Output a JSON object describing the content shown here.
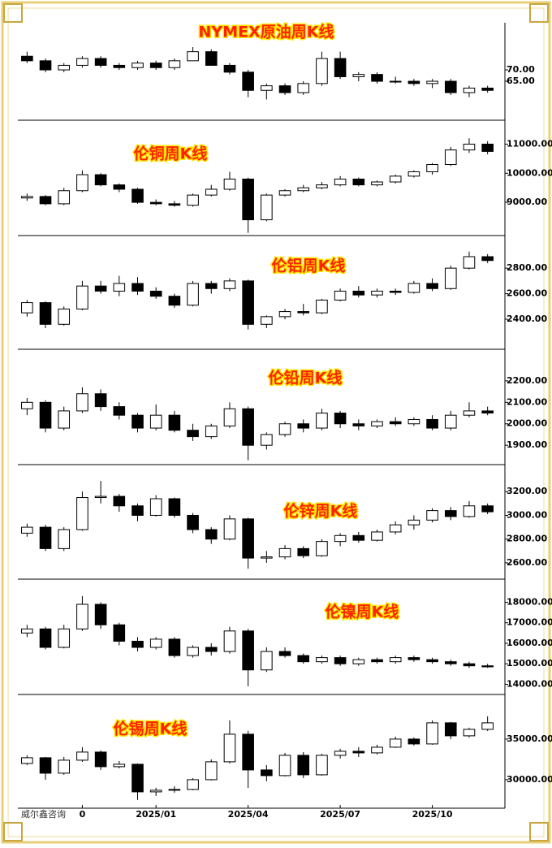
{
  "watermark": "威尔鑫咨询",
  "chart_data": [
    {
      "type": "candlestick",
      "title": "NYMEX原油周K线",
      "up_color": "#ffffff",
      "down_color": "#000000",
      "open": [
        76,
        74,
        70,
        72,
        75,
        72,
        71,
        73,
        71,
        74,
        78,
        72,
        69,
        61,
        63,
        60,
        64,
        75,
        67,
        68,
        65,
        65,
        64,
        65,
        60,
        62
      ],
      "high": [
        78,
        75,
        73,
        76,
        76,
        73,
        74,
        74,
        75,
        80,
        79,
        73,
        70,
        64,
        64,
        65,
        78,
        78,
        69,
        69,
        67,
        66,
        66,
        66,
        63,
        63
      ],
      "low": [
        73,
        69,
        69,
        71,
        71,
        70,
        70,
        70,
        70,
        74,
        72,
        68,
        58,
        57,
        59,
        59,
        63,
        66,
        65,
        64,
        64,
        63,
        62,
        59,
        58,
        60
      ],
      "close": [
        74,
        70,
        72,
        75,
        72,
        71,
        73,
        71,
        74,
        78,
        72,
        69,
        61,
        63,
        60,
        64,
        75,
        67,
        68,
        65,
        65,
        64,
        65,
        60,
        62,
        61
      ],
      "ylim": [
        49.3,
        89.3
      ],
      "yticks": [
        {
          "value": 65,
          "label": "65.00"
        },
        {
          "value": 70,
          "label": "70.00"
        }
      ]
    },
    {
      "type": "candlestick",
      "title": "伦铜周K线",
      "up_color": "#ffffff",
      "down_color": "#000000",
      "open": [
        9150,
        9200,
        8950,
        9400,
        9950,
        9600,
        9450,
        9000,
        8950,
        8900,
        9250,
        9450,
        9800,
        8400,
        9250,
        9400,
        9500,
        9600,
        9800,
        9600,
        9700,
        9900,
        10050,
        10300,
        10800,
        11000
      ],
      "high": [
        9300,
        9250,
        9500,
        10100,
        10000,
        9650,
        9500,
        9100,
        9050,
        9300,
        9600,
        10050,
        9850,
        9300,
        9450,
        9600,
        9700,
        9900,
        9850,
        9750,
        9950,
        10100,
        10350,
        10900,
        11200,
        11100
      ],
      "low": [
        9050,
        8900,
        8900,
        9350,
        9550,
        9350,
        8950,
        8900,
        8850,
        8850,
        9200,
        9400,
        7950,
        8350,
        9200,
        9350,
        9450,
        9550,
        9550,
        9550,
        9650,
        9850,
        9950,
        10250,
        10700,
        10650
      ],
      "close": [
        9200,
        8950,
        9400,
        9950,
        9600,
        9450,
        9000,
        8950,
        8900,
        9250,
        9450,
        9800,
        8400,
        9250,
        9400,
        9500,
        9600,
        9800,
        9600,
        9700,
        9900,
        10050,
        10300,
        10800,
        11000,
        10750
      ],
      "ylim": [
        7970,
        11710
      ],
      "yticks": [
        {
          "value": 9000,
          "label": "9000.00"
        },
        {
          "value": 10000,
          "label": "10000.00"
        },
        {
          "value": 11000,
          "label": "11000.00"
        }
      ]
    },
    {
      "type": "candlestick",
      "title": "伦铝周K线",
      "up_color": "#ffffff",
      "down_color": "#000000",
      "open": [
        2450,
        2530,
        2360,
        2480,
        2660,
        2620,
        2680,
        2620,
        2580,
        2510,
        2680,
        2640,
        2700,
        2360,
        2420,
        2460,
        2450,
        2550,
        2620,
        2590,
        2620,
        2610,
        2680,
        2640,
        2800,
        2890
      ],
      "high": [
        2550,
        2540,
        2500,
        2700,
        2700,
        2740,
        2730,
        2650,
        2600,
        2700,
        2700,
        2720,
        2710,
        2430,
        2480,
        2520,
        2560,
        2640,
        2660,
        2640,
        2640,
        2700,
        2720,
        2820,
        2930,
        2910
      ],
      "low": [
        2420,
        2330,
        2350,
        2470,
        2600,
        2580,
        2590,
        2560,
        2490,
        2500,
        2600,
        2620,
        2320,
        2330,
        2400,
        2430,
        2440,
        2540,
        2570,
        2570,
        2590,
        2600,
        2620,
        2630,
        2790,
        2840
      ],
      "close": [
        2530,
        2360,
        2480,
        2660,
        2620,
        2680,
        2620,
        2580,
        2510,
        2680,
        2640,
        2700,
        2360,
        2420,
        2460,
        2450,
        2550,
        2620,
        2590,
        2620,
        2610,
        2680,
        2640,
        2800,
        2890,
        2860
      ],
      "ylim": [
        2190,
        3030
      ],
      "yticks": [
        {
          "value": 2400,
          "label": "2400.00"
        },
        {
          "value": 2600,
          "label": "2600.00"
        },
        {
          "value": 2800,
          "label": "2800.00"
        }
      ]
    },
    {
      "type": "candlestick",
      "title": "伦铅周K线",
      "up_color": "#ffffff",
      "down_color": "#000000",
      "open": [
        2070,
        2100,
        1980,
        2060,
        2140,
        2080,
        2040,
        1980,
        2040,
        1970,
        1940,
        1990,
        2070,
        1900,
        1950,
        2000,
        1980,
        2050,
        2000,
        1990,
        2010,
        2000,
        2020,
        1980,
        2040,
        2060
      ],
      "high": [
        2120,
        2110,
        2080,
        2170,
        2160,
        2100,
        2050,
        2090,
        2060,
        2000,
        2000,
        2100,
        2080,
        1960,
        2010,
        2020,
        2070,
        2060,
        2020,
        2020,
        2030,
        2030,
        2040,
        2060,
        2100,
        2080
      ],
      "low": [
        2040,
        1960,
        1970,
        2050,
        2060,
        2020,
        1960,
        1970,
        1960,
        1920,
        1930,
        1980,
        1830,
        1880,
        1940,
        1960,
        1970,
        1980,
        1970,
        1980,
        1990,
        1990,
        1970,
        1970,
        2030,
        2040
      ],
      "close": [
        2100,
        1980,
        2060,
        2140,
        2080,
        2040,
        1980,
        2040,
        1970,
        1940,
        1990,
        2070,
        1900,
        1950,
        2000,
        1980,
        2050,
        2000,
        1990,
        2010,
        2000,
        2020,
        1980,
        2040,
        2060,
        2050
      ],
      "ylim": [
        1825,
        2332
      ],
      "yticks": [
        {
          "value": 1900,
          "label": "1900.00"
        },
        {
          "value": 2000,
          "label": "2000.00"
        },
        {
          "value": 2100,
          "label": "2100.00"
        },
        {
          "value": 2200,
          "label": "2200.00"
        }
      ]
    },
    {
      "type": "candlestick",
      "title": "伦锌周K线",
      "up_color": "#ffffff",
      "down_color": "#000000",
      "open": [
        2850,
        2900,
        2720,
        2880,
        3150,
        3160,
        3080,
        3000,
        3140,
        3000,
        2880,
        2800,
        2970,
        2640,
        2650,
        2720,
        2660,
        2780,
        2830,
        2790,
        2860,
        2920,
        2960,
        3040,
        2990,
        3080
      ],
      "high": [
        2930,
        2920,
        2900,
        3200,
        3290,
        3180,
        3100,
        3170,
        3150,
        3020,
        2900,
        3000,
        2980,
        2700,
        2750,
        2740,
        2800,
        2850,
        2860,
        2880,
        2950,
        3000,
        3060,
        3070,
        3120,
        3100
      ],
      "low": [
        2820,
        2700,
        2700,
        2870,
        3100,
        3030,
        2950,
        2990,
        2980,
        2850,
        2760,
        2790,
        2550,
        2600,
        2630,
        2640,
        2650,
        2740,
        2770,
        2780,
        2840,
        2880,
        2940,
        2960,
        2980,
        3010
      ],
      "close": [
        2900,
        2720,
        2880,
        3150,
        3160,
        3080,
        3000,
        3140,
        3000,
        2880,
        2800,
        2970,
        2640,
        2650,
        2720,
        2660,
        2780,
        2830,
        2790,
        2860,
        2920,
        2960,
        3040,
        2990,
        3080,
        3030
      ],
      "ylim": [
        2490,
        3400
      ],
      "yticks": [
        {
          "value": 2600,
          "label": "2600.00"
        },
        {
          "value": 2800,
          "label": "2800.00"
        },
        {
          "value": 3000,
          "label": "3000.00"
        },
        {
          "value": 3200,
          "label": "3200.00"
        }
      ]
    },
    {
      "type": "candlestick",
      "title": "伦镍周K线",
      "up_color": "#ffffff",
      "down_color": "#000000",
      "open": [
        16500,
        16700,
        15800,
        16700,
        17900,
        16900,
        16100,
        15800,
        16200,
        15400,
        15800,
        15600,
        16600,
        14700,
        15600,
        15400,
        15100,
        15300,
        15000,
        15200,
        15100,
        15300,
        15200,
        15100,
        15000,
        14900
      ],
      "high": [
        16900,
        16800,
        16900,
        18300,
        18000,
        17000,
        16300,
        16300,
        16300,
        15900,
        16000,
        16800,
        16700,
        15800,
        15800,
        15500,
        15400,
        15400,
        15300,
        15300,
        15400,
        15400,
        15300,
        15200,
        15100,
        15000
      ],
      "low": [
        16300,
        15700,
        15750,
        16600,
        16700,
        15900,
        15600,
        15700,
        15300,
        15300,
        15400,
        15500,
        13900,
        14600,
        15300,
        15000,
        15000,
        14900,
        14900,
        15000,
        15000,
        15100,
        15000,
        14900,
        14800,
        14800
      ],
      "close": [
        16700,
        15800,
        16700,
        17900,
        16900,
        16100,
        15800,
        16200,
        15400,
        15800,
        15600,
        16600,
        14700,
        15600,
        15400,
        15100,
        15300,
        15000,
        15200,
        15100,
        15300,
        15200,
        15100,
        15000,
        14900,
        14850
      ],
      "ylim": [
        13660,
        18970
      ],
      "yticks": [
        {
          "value": 14000,
          "label": "14000.00"
        },
        {
          "value": 15000,
          "label": "15000.00"
        },
        {
          "value": 16000,
          "label": "16000.00"
        },
        {
          "value": 17000,
          "label": "17000.00"
        },
        {
          "value": 18000,
          "label": "18000.00"
        }
      ]
    },
    {
      "type": "candlestick",
      "title": "伦锡周K线",
      "up_color": "#ffffff",
      "down_color": "#000000",
      "open": [
        32000,
        32700,
        30800,
        32400,
        33400,
        31600,
        31900,
        28500,
        28700,
        28800,
        30000,
        32200,
        35600,
        31200,
        30500,
        33000,
        30600,
        33000,
        33500,
        33300,
        34000,
        35000,
        34400,
        37000,
        35400,
        36200
      ],
      "high": [
        33000,
        32800,
        32800,
        34000,
        33600,
        32300,
        32000,
        29000,
        29200,
        30200,
        32500,
        37300,
        36000,
        31800,
        33300,
        33400,
        33200,
        33800,
        34000,
        34300,
        35300,
        35200,
        37300,
        37100,
        36400,
        37800
      ],
      "low": [
        31800,
        30000,
        30600,
        32200,
        31200,
        31400,
        27500,
        28000,
        28400,
        28700,
        29900,
        32000,
        29000,
        29800,
        30400,
        30200,
        30500,
        32600,
        32800,
        33100,
        33900,
        34200,
        34300,
        35000,
        35200,
        36000
      ],
      "close": [
        32700,
        30800,
        32400,
        33400,
        31600,
        31900,
        28500,
        28700,
        28800,
        30000,
        32200,
        35600,
        31200,
        30500,
        33000,
        30600,
        33000,
        33500,
        33300,
        34000,
        35000,
        34400,
        37000,
        35400,
        36200,
        37000
      ],
      "categories": [
        null,
        null,
        null,
        "0",
        null,
        null,
        null,
        "2025/01",
        null,
        null,
        null,
        null,
        "2025/04",
        null,
        null,
        null,
        null,
        "2025/07",
        null,
        null,
        null,
        null,
        "2025/10",
        null,
        null,
        null
      ],
      "ylim": [
        26890,
        40090
      ],
      "yticks": [
        {
          "value": 30000,
          "label": "30000.00"
        },
        {
          "value": 35000,
          "label": "35000.00"
        }
      ]
    }
  ]
}
